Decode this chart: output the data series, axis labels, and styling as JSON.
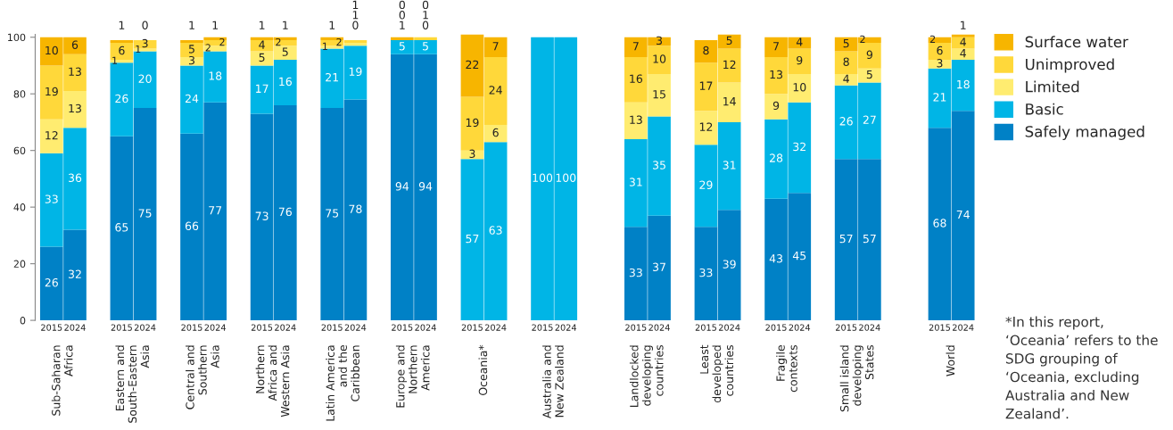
{
  "chart_data": {
    "type": "bar",
    "stacked": true,
    "categories": [
      "2015",
      "2024",
      null,
      "2015",
      "2024",
      null,
      "2015",
      "2024",
      null,
      "2015",
      "2024",
      null,
      "2015",
      "2024",
      null,
      "2015",
      "2024",
      null,
      "2015",
      "2024",
      null,
      "2015",
      "2024",
      null,
      null,
      "2015",
      "2024",
      null,
      "2015",
      "2024",
      null,
      "2015",
      "2024",
      null,
      "2015",
      "2024",
      null,
      null,
      "2015",
      "2024"
    ],
    "series": [
      {
        "name": "Safely managed",
        "color": "#0081c6",
        "values": [
          26,
          32,
          null,
          65,
          75,
          null,
          66,
          77,
          null,
          73,
          76,
          null,
          75,
          78,
          null,
          94,
          94,
          null,
          null,
          null,
          null,
          null,
          null,
          null,
          null,
          33,
          37,
          null,
          33,
          39,
          null,
          43,
          45,
          null,
          57,
          57,
          null,
          null,
          68,
          74
        ]
      },
      {
        "name": "Basic",
        "color": "#00b5e6",
        "values": [
          33,
          36,
          null,
          26,
          20,
          null,
          24,
          18,
          null,
          17,
          16,
          null,
          21,
          19,
          null,
          5,
          5,
          null,
          57,
          63,
          null,
          100,
          100,
          null,
          null,
          31,
          35,
          null,
          29,
          31,
          null,
          28,
          32,
          null,
          26,
          27,
          null,
          null,
          21,
          18
        ]
      },
      {
        "name": "Limited",
        "color": "#ffec70",
        "values": [
          12,
          13,
          null,
          1,
          1,
          null,
          3,
          2,
          null,
          5,
          5,
          null,
          1,
          1,
          null,
          0,
          0,
          null,
          3,
          6,
          null,
          null,
          null,
          null,
          null,
          13,
          15,
          null,
          12,
          14,
          null,
          9,
          10,
          null,
          4,
          5,
          null,
          null,
          3,
          4
        ]
      },
      {
        "name": "Unimproved",
        "color": "#ffd83a",
        "values": [
          19,
          13,
          null,
          6,
          3,
          null,
          5,
          2,
          null,
          4,
          2,
          null,
          2,
          1,
          null,
          0,
          1,
          null,
          19,
          24,
          null,
          null,
          null,
          null,
          null,
          16,
          10,
          null,
          17,
          12,
          null,
          13,
          9,
          null,
          8,
          9,
          null,
          null,
          6,
          4
        ]
      },
      {
        "name": "Surface water",
        "color": "#f7b500",
        "values": [
          10,
          6,
          null,
          1,
          0,
          null,
          1,
          1,
          null,
          1,
          1,
          null,
          1,
          0,
          null,
          1,
          0,
          null,
          22,
          7,
          null,
          null,
          null,
          null,
          null,
          7,
          3,
          null,
          8,
          5,
          null,
          7,
          4,
          null,
          5,
          2,
          null,
          null,
          2,
          1
        ]
      }
    ],
    "ylim": [
      0,
      101
    ],
    "yticks": [
      0,
      20,
      40,
      60,
      80,
      100
    ],
    "data_labels": true,
    "legend": "right",
    "grid": false,
    "annotations": [
      "Sub-Saharan\nAfrica",
      "Eastern and\nSouth-Eastern\nAsia",
      "Central and\nSouthern\nAsia",
      "Northern\nAfrica and\nWestern Asia",
      "Latin America\nand the\nCaribbean",
      "Europe and\nNorthern\nAmerica",
      "Oceania*",
      "Australia and\nNew Zealand",
      "Landlocked\ndeveloping\ncountries",
      "Least\ndeveloped\ncountries",
      "Fragile\ncontexts",
      "Small island\ndeveloping\nStates",
      "World",
      "*In this report, ‘Oceania’ refers to the SDG grouping of ‘Oceania, excluding Australia and New Zealand’."
    ]
  }
}
